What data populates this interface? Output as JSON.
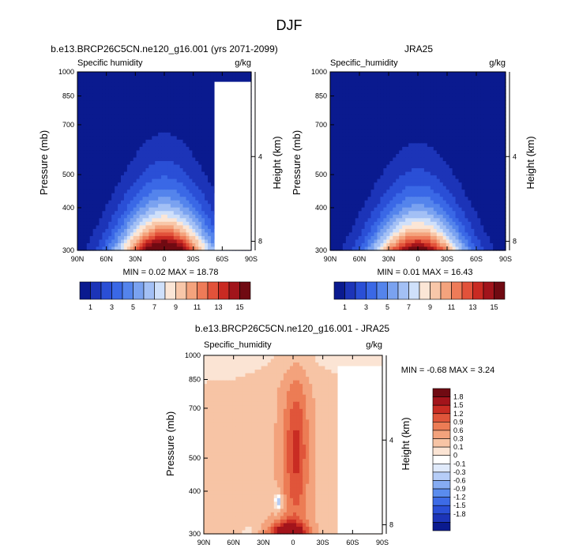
{
  "page_title": "DJF",
  "palettes": {
    "abs": [
      "#0a1a8f",
      "#1c34b8",
      "#2a4fd6",
      "#3a68e6",
      "#5484ec",
      "#7aa2f0",
      "#a3c0f5",
      "#cfe0fa",
      "#fbe6d6",
      "#f8c7a9",
      "#f4a37d",
      "#ee7b58",
      "#e2523a",
      "#c92a22",
      "#a1141b",
      "#700a12"
    ],
    "diff": [
      "#0a1a8f",
      "#1c34b8",
      "#2a4fd6",
      "#3d6be6",
      "#5a8cee",
      "#86acf3",
      "#b6cdf7",
      "#e0eafb",
      "#ffffff",
      "#fbe4d4",
      "#f7c4a5",
      "#f3a27c",
      "#ec7c55",
      "#e0553a",
      "#c92c23",
      "#a3141b",
      "#700a12"
    ]
  },
  "chart_data": [
    {
      "type": "heatmap",
      "panel": "model",
      "title": "b.e13.BRCP26C5CN.ne120_g16.001 (yrs 2071-2099)",
      "left_string": "Specific humidity",
      "right_string": "g/kg",
      "ylabel": "Pressure (mb)",
      "y2label": "Height (km)",
      "x_ticks": [
        "90N",
        "60N",
        "30N",
        "0",
        "30S",
        "60S",
        "90S"
      ],
      "y_ticks": [
        1000,
        850,
        700,
        500,
        400,
        300
      ],
      "y2_ticks": [
        4,
        8
      ],
      "ylim": [
        1000,
        300
      ],
      "levels": [
        1,
        2,
        3,
        4,
        5,
        6,
        7,
        8,
        9,
        10,
        11,
        12,
        13,
        14,
        15
      ],
      "colorbar_labels": [
        "1",
        "3",
        "5",
        "7",
        "9",
        "11",
        "13",
        "15"
      ],
      "min_label": "MIN =  0.02  MAX = 18.78",
      "field": {
        "peak": 18.78,
        "center_lat": 0,
        "width_surface": 48,
        "scale_height": 0.27,
        "topo_lat": 52,
        "topo_p": 935
      },
      "palette": "abs"
    },
    {
      "type": "heatmap",
      "panel": "obs",
      "title": "JRA25",
      "left_string": "Specific_humidity",
      "right_string": "g/kg",
      "ylabel": "Pressure (mb)",
      "y2label": "Height (km)",
      "x_ticks": [
        "90N",
        "60N",
        "30N",
        "0",
        "30S",
        "60S",
        "90S"
      ],
      "y_ticks": [
        1000,
        850,
        700,
        500,
        400,
        300
      ],
      "y2_ticks": [
        4,
        8
      ],
      "ylim": [
        1000,
        300
      ],
      "levels": [
        1,
        2,
        3,
        4,
        5,
        6,
        7,
        8,
        9,
        10,
        11,
        12,
        13,
        14,
        15
      ],
      "colorbar_labels": [
        "1",
        "3",
        "5",
        "7",
        "9",
        "11",
        "13",
        "15"
      ],
      "min_label": "MIN =  0.01  MAX = 16.43",
      "field": {
        "peak": 16.43,
        "center_lat": 0,
        "width_surface": 47,
        "scale_height": 0.26,
        "topo_lat": 999,
        "topo_p": 1000
      },
      "palette": "abs"
    },
    {
      "type": "heatmap",
      "panel": "diff",
      "title": "b.e13.BRCP26C5CN.ne120_g16.001 - JRA25",
      "left_string": "Specific_humidity",
      "right_string": "g/kg",
      "ylabel": "Pressure (mb)",
      "y2label": "Height (km)",
      "x_ticks": [
        "90N",
        "60N",
        "30N",
        "0",
        "30S",
        "60S",
        "90S"
      ],
      "y_ticks": [
        1000,
        850,
        700,
        500,
        400,
        300
      ],
      "y2_ticks": [
        4,
        8
      ],
      "ylim": [
        1000,
        300
      ],
      "levels": [
        -1.8,
        -1.5,
        -1.2,
        -0.9,
        -0.6,
        -0.3,
        -0.1,
        0,
        0.1,
        0.3,
        0.6,
        0.9,
        1.2,
        1.5,
        1.8
      ],
      "colorbar_labels": [
        "1.8",
        "1.5",
        "1.2",
        "0.9",
        "0.6",
        "0.3",
        "0.1",
        "0",
        "-0.1",
        "-0.3",
        "-0.6",
        "-0.9",
        "-1.2",
        "-1.5",
        "-1.8"
      ],
      "min_label": "MIN = -0.68  MAX =  3.24",
      "field": {
        "peak": 3.24,
        "center_lat": 0,
        "topo_lat": 45,
        "topo_p": 930
      },
      "palette": "diff"
    }
  ]
}
